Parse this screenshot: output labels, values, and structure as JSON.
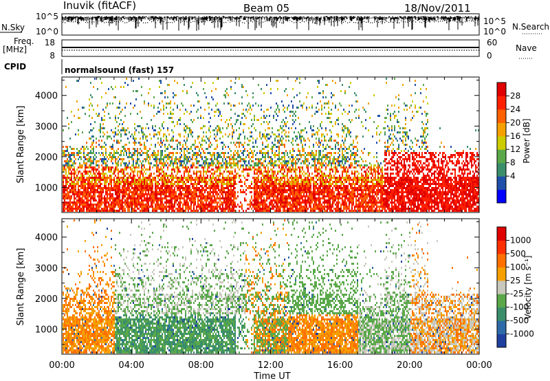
{
  "header": {
    "station": "Inuvik (fitACF)",
    "beam": "Beam 05",
    "date": "18/Nov/2011"
  },
  "strips": {
    "nsky": {
      "label": "N.Sky",
      "ticks": [
        "10^5",
        "10^0"
      ]
    },
    "nsearch": {
      "label": "N.Search",
      "ticks": [
        "10^5",
        "10^0"
      ]
    },
    "freq": {
      "label_line1": "Freq.",
      "label_line2": "[MHz]",
      "ticks": [
        "18",
        "8"
      ]
    },
    "nave": {
      "label": "Nave",
      "ticks": [
        "60",
        "0"
      ]
    },
    "cpid": {
      "label": "CPID",
      "value": "normalsound (fast) 157"
    }
  },
  "chart_data": [
    {
      "type": "heatmap",
      "title": "",
      "xlabel": "Time UT",
      "ylabel": "Slant Range [km]",
      "x_ticks": [
        "00:00",
        "04:00",
        "08:00",
        "12:00",
        "16:00",
        "20:00",
        "00:00"
      ],
      "y_ticks": [
        1000,
        2000,
        3000,
        4000
      ],
      "xlim_hours": [
        0,
        24
      ],
      "ylim_km": [
        180,
        4600
      ],
      "colorbar": {
        "label": "Power [dB]",
        "ticks": [
          "28",
          "24",
          "20",
          "16",
          "12",
          "8",
          "4"
        ],
        "colors": [
          "#0000ff",
          "#1f4fa8",
          "#3a8f6a",
          "#5aa84a",
          "#cccc00",
          "#f5a000",
          "#ff6000",
          "#ff2000",
          "#e00000"
        ]
      }
    },
    {
      "type": "heatmap",
      "title": "",
      "xlabel": "Time UT",
      "ylabel": "Slant Range [km]",
      "x_ticks": [
        "00:00",
        "04:00",
        "08:00",
        "12:00",
        "16:00",
        "20:00",
        "00:00"
      ],
      "y_ticks": [
        1000,
        2000,
        3000,
        4000
      ],
      "xlim_hours": [
        0,
        24
      ],
      "ylim_km": [
        180,
        4600
      ],
      "colorbar": {
        "label": "Velocity [m s⁻¹]",
        "ticks": [
          "1000",
          "500",
          "100",
          "25",
          "-25",
          "-100",
          "-500",
          "-1000"
        ],
        "colors": [
          "#2040a0",
          "#2f6aa8",
          "#3a8f6a",
          "#5aa84a",
          "#c8c8bc",
          "#f5a000",
          "#ff7000",
          "#ff3000",
          "#e00000"
        ]
      }
    }
  ]
}
